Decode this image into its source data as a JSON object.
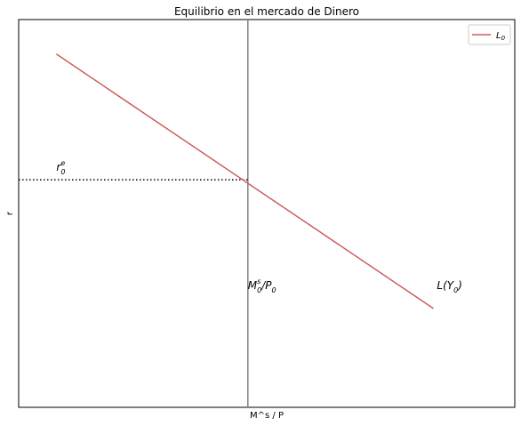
{
  "chart_data": {
    "type": "line",
    "title": "Equilibrio en el mercado de Dinero",
    "xlabel": "M^s / P",
    "ylabel": "r",
    "xlim": [
      0,
      100
    ],
    "ylim": [
      0,
      100
    ],
    "grid": false,
    "x_ticks": [],
    "y_ticks": [],
    "legend": {
      "position": "top-right",
      "entries": [
        {
          "label": "L",
          "subscript": "0",
          "color": "#cd5c5c"
        }
      ]
    },
    "series": [
      {
        "name": "L0",
        "color": "#cd5c5c",
        "x": [
          7.6,
          83.6
        ],
        "y": [
          91.1,
          25.5
        ]
      }
    ],
    "reference_lines": {
      "vertical": {
        "x": 46.2,
        "color": "#808080"
      },
      "horizontal": {
        "y": 58.7,
        "style": "dotted",
        "color": "#000000"
      }
    },
    "annotations": {
      "r_eq": {
        "base": "r",
        "sub": "0",
        "sup": "e",
        "x": 7.6,
        "y": 58.7
      },
      "money_supply": {
        "base": "M",
        "sub": "0",
        "sup": "s",
        "tail": "/P",
        "tail_sub": "0",
        "x": 46.2,
        "y": 30.5
      },
      "demand": {
        "text": "L(Y",
        "sub": "0",
        "close": ")",
        "x": 84.3,
        "y": 30.5
      }
    }
  }
}
